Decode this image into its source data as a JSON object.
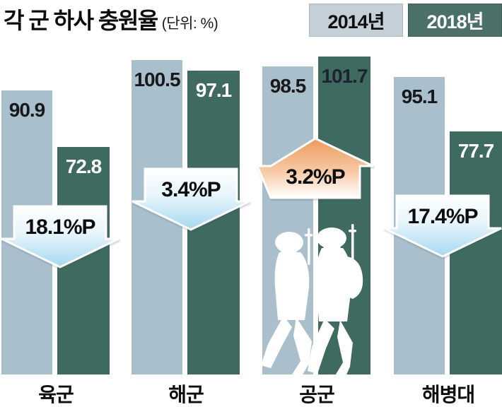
{
  "title": {
    "text": "각 군 하사 충원율",
    "unit_note": "(단위: %)"
  },
  "legend": {
    "items": [
      {
        "label": "2014년"
      },
      {
        "label": "2018년"
      }
    ]
  },
  "colors": {
    "bar_2014": "#a9bfcc",
    "bar_2018": "#3f6a60",
    "legend_2014_bg": "#c4cfd8",
    "legend_2018_bg": "#4a7069",
    "down_arrow_top": "#ffffff",
    "down_arrow_bottom": "#a5d8ef",
    "up_arrow_top": "#ec9a5e",
    "up_arrow_bottom": "#ffffff",
    "value_2014_text": "#17181c",
    "delta_text": "#0d0d0d"
  },
  "chart_data": {
    "type": "bar",
    "title": "각 군 하사 충원율",
    "unit": "%",
    "categories": [
      "육군",
      "해군",
      "공군",
      "해병대"
    ],
    "category_keys": [
      "army",
      "navy",
      "air-force",
      "marines"
    ],
    "series": [
      {
        "name": "2014년",
        "values": [
          90.9,
          100.5,
          98.5,
          95.1
        ]
      },
      {
        "name": "2018년",
        "values": [
          72.8,
          97.1,
          101.7,
          77.7
        ]
      }
    ],
    "value_label_colors_2018": [
      "#ffffff",
      "#ffffff",
      "#1b2430",
      "#ffffff"
    ],
    "deltas": [
      {
        "label": "18.1%P",
        "direction": "down"
      },
      {
        "label": "3.4%P",
        "direction": "down"
      },
      {
        "label": "3.2%P",
        "direction": "up"
      },
      {
        "label": "17.4%P",
        "direction": "down"
      }
    ],
    "ylim": [
      0,
      101.7
    ],
    "grid": false,
    "legend_position": "top-right"
  }
}
